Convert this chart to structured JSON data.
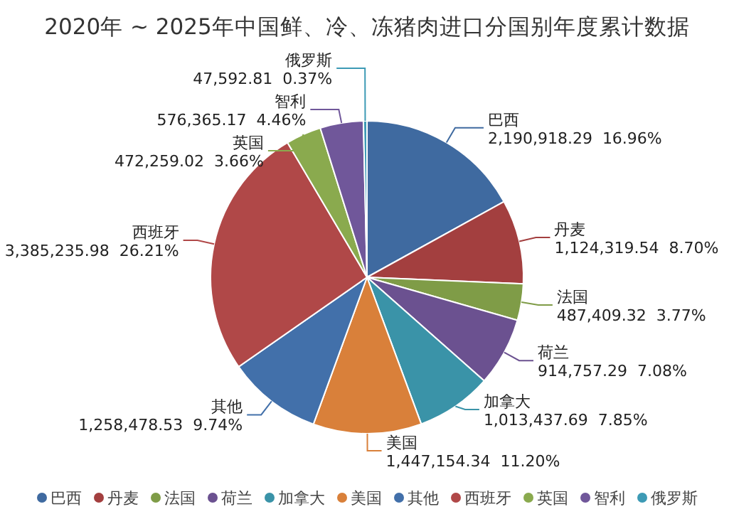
{
  "chart_data": {
    "type": "pie",
    "title": "2020年 ~ 2025年中国鲜、冷、冻猪肉进口分国别年度累计数据",
    "categories": [
      "巴西",
      "丹麦",
      "法国",
      "荷兰",
      "加拿大",
      "美国",
      "其他",
      "西班牙",
      "英国",
      "智利",
      "俄罗斯"
    ],
    "values": [
      2190918.29,
      1124319.54,
      487409.32,
      914757.29,
      1013437.69,
      1447154.34,
      1258478.53,
      3385235.98,
      472259.02,
      576365.17,
      47592.81
    ],
    "value_labels": [
      "2,190,918.29  16.96%",
      "1,124,319.54  8.70%",
      "487,409.32  3.77%",
      "914,757.29  7.08%",
      "1,013,437.69  7.85%",
      "1,447,154.34  11.20%",
      "1,258,478.53  9.74%",
      "3,385,235.98  26.21%",
      "472,259.02  3.66%",
      "576,365.17  4.46%",
      "47,592.81  0.37%"
    ],
    "colors": [
      "#3f6aa0",
      "#a33f3f",
      "#7f9c47",
      "#6b5190",
      "#3a93a8",
      "#d9803a",
      "#4270aa",
      "#b04848",
      "#8aaa4e",
      "#70579a",
      "#3d9ab5"
    ],
    "legend": "bottom"
  }
}
